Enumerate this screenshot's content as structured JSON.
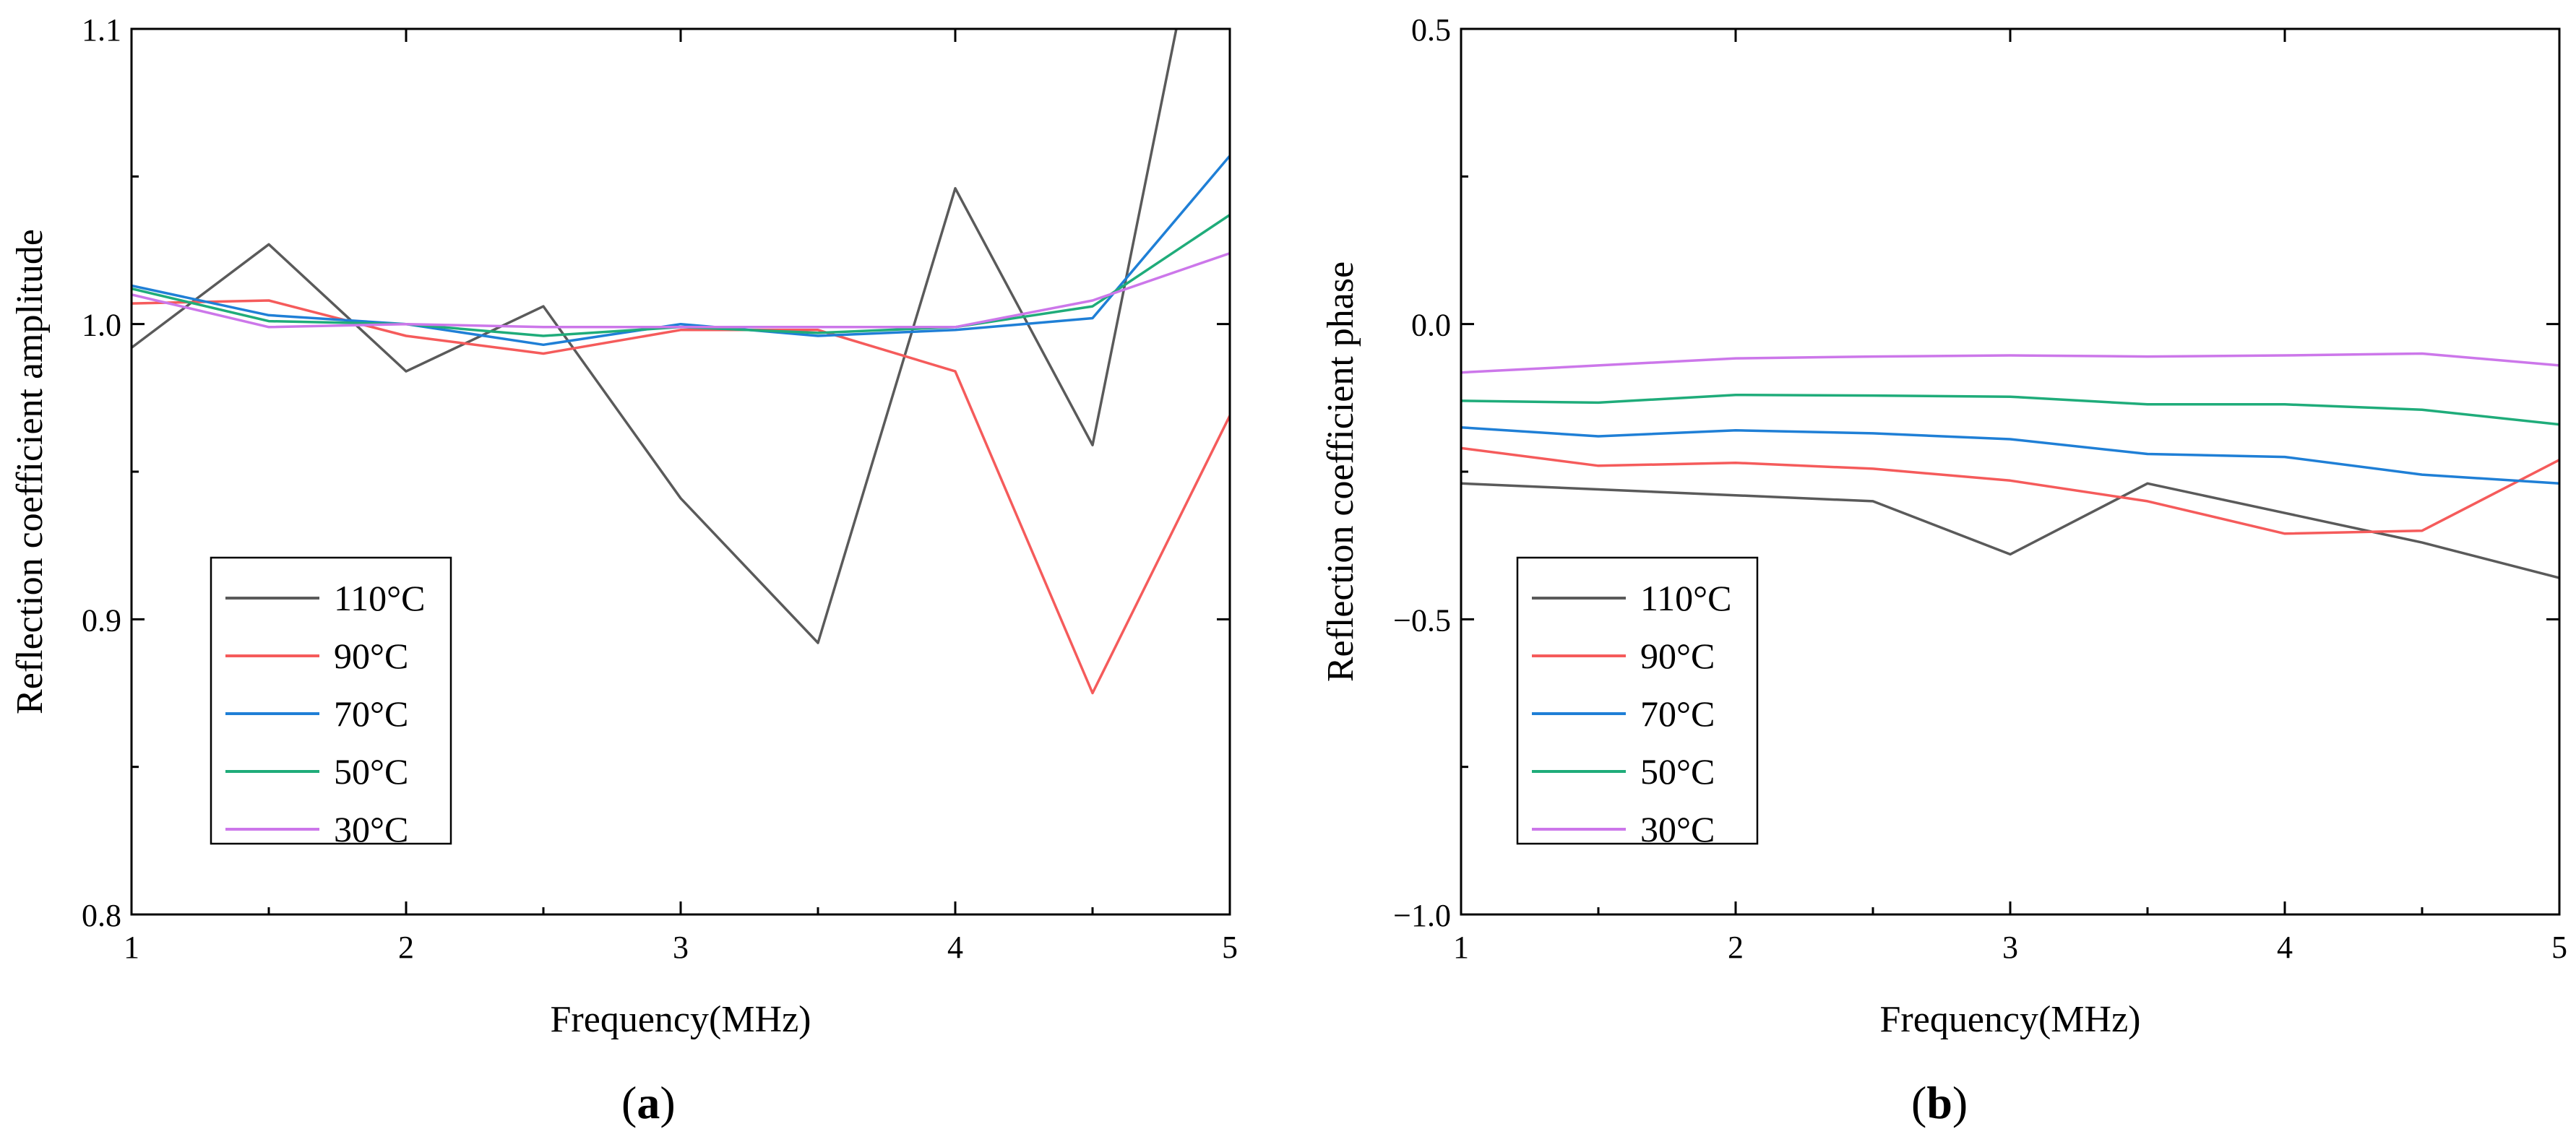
{
  "chart_data": [
    {
      "type": "line",
      "panel_label": [
        "(",
        "a",
        ")"
      ],
      "xlabel": "Frequency(MHz)",
      "ylabel": "Reflection coefficient amplitude",
      "xlim": [
        1,
        5
      ],
      "ylim": [
        0.8,
        1.1
      ],
      "xticks": [
        1,
        2,
        3,
        4,
        5
      ],
      "xtick_labels": [
        "1",
        "2",
        "3",
        "4",
        "5"
      ],
      "yticks": [
        0.8,
        0.9,
        1.0,
        1.1
      ],
      "ytick_labels": [
        "0.8",
        "0.9",
        "1.0",
        "1.1"
      ],
      "legend_position": "bottom-left",
      "x": [
        1,
        1.5,
        2,
        2.5,
        3,
        3.5,
        4,
        4.5,
        5
      ],
      "series": [
        {
          "name": "110°C",
          "color": "#5a5a5a",
          "values": [
            0.992,
            1.027,
            0.984,
            1.006,
            0.941,
            0.892,
            1.046,
            0.959,
            1.19
          ]
        },
        {
          "name": "90°C",
          "color": "#f55b5b",
          "values": [
            1.007,
            1.008,
            0.996,
            0.99,
            0.998,
            0.998,
            0.984,
            0.875,
            0.969
          ]
        },
        {
          "name": "70°C",
          "color": "#1f7fd6",
          "values": [
            1.013,
            1.003,
            1.0,
            0.993,
            1.0,
            0.996,
            0.998,
            1.002,
            1.057
          ]
        },
        {
          "name": "50°C",
          "color": "#1fac7a",
          "values": [
            1.012,
            1.001,
            1.0,
            0.996,
            0.999,
            0.997,
            0.999,
            1.006,
            1.037
          ]
        },
        {
          "name": "30°C",
          "color": "#cc77ea",
          "values": [
            1.01,
            0.999,
            1.0,
            0.999,
            0.999,
            0.999,
            0.999,
            1.008,
            1.024
          ]
        }
      ]
    },
    {
      "type": "line",
      "panel_label": [
        "(",
        "b",
        ")"
      ],
      "xlabel": "Frequency(MHz)",
      "ylabel": "Reflection coefficient phase",
      "xlim": [
        1,
        5
      ],
      "ylim": [
        -1.0,
        0.5
      ],
      "xticks": [
        1,
        2,
        3,
        4,
        5
      ],
      "xtick_labels": [
        "1",
        "2",
        "3",
        "4",
        "5"
      ],
      "yticks": [
        -1.0,
        -0.5,
        0.0,
        0.5
      ],
      "ytick_labels": [
        "−1.0",
        "−0.5",
        "0.0",
        "0.5"
      ],
      "legend_position": "bottom-left",
      "x": [
        1,
        1.5,
        2,
        2.5,
        3,
        3.5,
        4,
        4.5,
        5
      ],
      "series": [
        {
          "name": "110°C",
          "color": "#5a5a5a",
          "values": [
            -0.27,
            -0.28,
            -0.29,
            -0.3,
            -0.39,
            -0.27,
            -0.32,
            -0.37,
            -0.43
          ]
        },
        {
          "name": "90°C",
          "color": "#f55b5b",
          "values": [
            -0.21,
            -0.24,
            -0.235,
            -0.245,
            -0.265,
            -0.3,
            -0.355,
            -0.35,
            -0.23
          ]
        },
        {
          "name": "70°C",
          "color": "#1f7fd6",
          "values": [
            -0.175,
            -0.19,
            -0.18,
            -0.185,
            -0.195,
            -0.22,
            -0.225,
            -0.255,
            -0.27
          ]
        },
        {
          "name": "50°C",
          "color": "#1fac7a",
          "values": [
            -0.13,
            -0.133,
            -0.12,
            -0.121,
            -0.123,
            -0.136,
            -0.136,
            -0.145,
            -0.17
          ]
        },
        {
          "name": "30°C",
          "color": "#cc77ea",
          "values": [
            -0.082,
            -0.07,
            -0.058,
            -0.055,
            -0.053,
            -0.055,
            -0.053,
            -0.05,
            -0.07
          ]
        }
      ]
    }
  ]
}
